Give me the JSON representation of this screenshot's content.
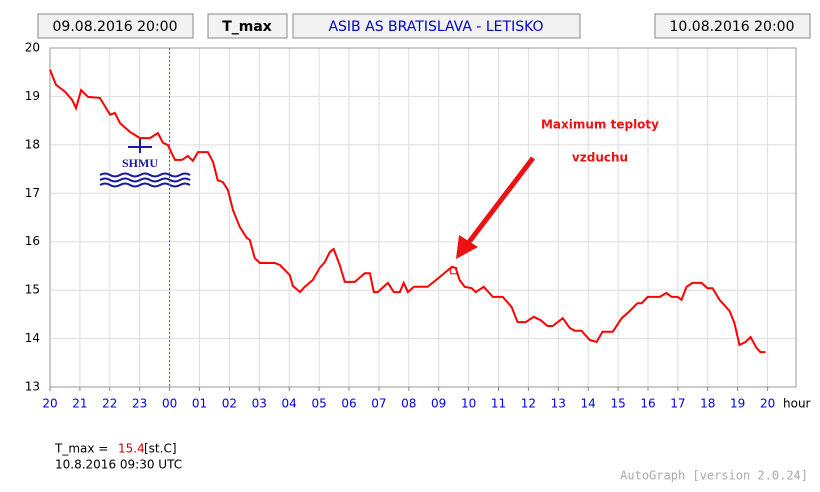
{
  "chart_data": {
    "type": "line",
    "header": {
      "start": "09.08.2016 20:00",
      "station": "ASIB AS BRATISLAVA - LETISKO",
      "end": "10.08.2016 20:00"
    },
    "logo": "SHMU",
    "annotation": [
      "Maximum teploty",
      "vzduchu"
    ],
    "x_unit": "hour",
    "x": [
      0,
      0.2,
      0.5,
      0.74,
      0.87,
      1.04,
      1.27,
      1.67,
      2.01,
      2.17,
      2.34,
      2.67,
      3.01,
      3.34,
      3.61,
      3.78,
      3.94,
      4.18,
      4.41,
      4.61,
      4.78,
      4.95,
      5.28,
      5.45,
      5.61,
      5.78,
      5.95,
      6.12,
      6.35,
      6.58,
      6.68,
      6.85,
      7.02,
      7.52,
      7.69,
      8.02,
      8.12,
      8.36,
      8.52,
      8.79,
      9.02,
      9.19,
      9.36,
      9.49,
      9.69,
      9.86,
      10.19,
      10.53,
      10.7,
      10.83,
      10.96,
      11.3,
      11.5,
      11.7,
      11.83,
      11.97,
      12.17,
      12.63,
      13.03,
      13.44,
      13.57,
      13.7,
      13.87,
      14.1,
      14.24,
      14.51,
      14.81,
      15.14,
      15.44,
      15.64,
      15.91,
      16.18,
      16.41,
      16.64,
      16.81,
      17.15,
      17.38,
      17.55,
      17.78,
      18.05,
      18.28,
      18.48,
      18.82,
      19.12,
      19.39,
      19.65,
      19.79,
      19.99,
      20.39,
      20.62,
      20.79,
      20.99,
      21.12,
      21.29,
      21.49,
      21.79,
      21.99,
      22.16,
      22.39,
      22.73,
      22.89,
      23.06,
      23.26,
      23.43,
      23.63,
      23.76,
      23.93
    ],
    "series": [
      {
        "name": "T_max",
        "color": "#ff0000",
        "values": [
          19.55,
          19.24,
          19.1,
          18.93,
          18.76,
          19.13,
          18.99,
          18.97,
          18.62,
          18.66,
          18.45,
          18.27,
          18.14,
          18.14,
          18.24,
          18.04,
          18.0,
          17.69,
          17.69,
          17.77,
          17.67,
          17.85,
          17.85,
          17.65,
          17.27,
          17.23,
          17.07,
          16.65,
          16.3,
          16.08,
          16.04,
          15.66,
          15.56,
          15.56,
          15.52,
          15.31,
          15.09,
          14.96,
          15.07,
          15.21,
          15.46,
          15.58,
          15.79,
          15.85,
          15.52,
          15.17,
          15.17,
          15.35,
          15.35,
          14.96,
          14.96,
          15.15,
          14.96,
          14.96,
          15.15,
          14.96,
          15.07,
          15.07,
          15.27,
          15.48,
          15.46,
          15.21,
          15.07,
          15.04,
          14.96,
          15.07,
          14.86,
          14.86,
          14.65,
          14.34,
          14.34,
          14.45,
          14.38,
          14.26,
          14.26,
          14.42,
          14.22,
          14.16,
          14.16,
          13.97,
          13.93,
          14.14,
          14.14,
          14.42,
          14.57,
          14.73,
          14.73,
          14.86,
          14.86,
          14.94,
          14.86,
          14.86,
          14.8,
          15.07,
          15.15,
          15.15,
          15.04,
          15.04,
          14.8,
          14.57,
          14.32,
          13.87,
          13.93,
          14.03,
          13.81,
          13.72,
          13.72
        ]
      }
    ],
    "highlight": {
      "x": 13.5,
      "y": 15.4,
      "color": "#ff0000"
    },
    "vline": 4,
    "xlim": [
      0,
      24.95
    ],
    "xticks": [
      {
        "value": 0,
        "label": "20"
      },
      {
        "value": 1,
        "label": "21"
      },
      {
        "value": 2,
        "label": "22"
      },
      {
        "value": 3,
        "label": "23"
      },
      {
        "value": 4,
        "label": "00"
      },
      {
        "value": 5,
        "label": "01"
      },
      {
        "value": 6,
        "label": "02"
      },
      {
        "value": 7,
        "label": "03"
      },
      {
        "value": 8,
        "label": "04"
      },
      {
        "value": 9,
        "label": "05"
      },
      {
        "value": 10,
        "label": "06"
      },
      {
        "value": 11,
        "label": "07"
      },
      {
        "value": 12,
        "label": "08"
      },
      {
        "value": 13,
        "label": "09"
      },
      {
        "value": 14,
        "label": "10"
      },
      {
        "value": 15,
        "label": "11"
      },
      {
        "value": 16,
        "label": "12"
      },
      {
        "value": 17,
        "label": "13"
      },
      {
        "value": 18,
        "label": "14"
      },
      {
        "value": 19,
        "label": "15"
      },
      {
        "value": 20,
        "label": "16"
      },
      {
        "value": 21,
        "label": "17"
      },
      {
        "value": 22,
        "label": "18"
      },
      {
        "value": 23,
        "label": "19"
      },
      {
        "value": 24,
        "label": "20"
      }
    ],
    "ylim": [
      13,
      20
    ],
    "yticks": [
      13,
      14,
      15,
      16,
      17,
      18,
      19,
      20
    ],
    "grid": true,
    "readout": {
      "label": "T_max =",
      "unit": "[st.C]",
      "time": "10.8.2016 09:30 UTC"
    },
    "footer": "AutoGraph [version 2.0.24]"
  }
}
